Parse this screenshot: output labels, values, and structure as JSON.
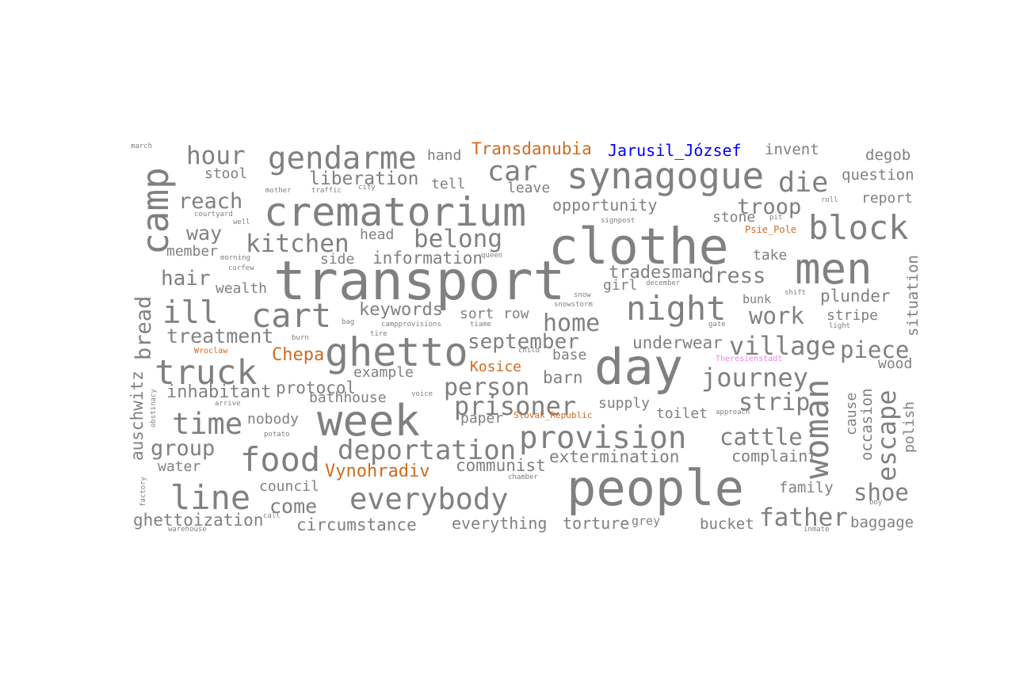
{
  "colors": {
    "default": "#808080",
    "orange": "#d2691e",
    "blue": "#0000ff",
    "pink": "#ee82ee"
  },
  "words": [
    {
      "text": "transport",
      "weight": 1.0,
      "color": "default"
    },
    {
      "text": "clothe",
      "weight": 0.96,
      "color": "default"
    },
    {
      "text": "day",
      "weight": 0.95,
      "color": "default"
    },
    {
      "text": "people",
      "weight": 0.95,
      "color": "default"
    },
    {
      "text": "men",
      "weight": 0.84,
      "color": "default"
    },
    {
      "text": "week",
      "weight": 0.84,
      "color": "default"
    },
    {
      "text": "crematorium",
      "weight": 0.78,
      "color": "default"
    },
    {
      "text": "ghetto",
      "weight": 0.78,
      "color": "default"
    },
    {
      "text": "synagogue",
      "weight": 0.7,
      "color": "default"
    },
    {
      "text": "camp",
      "weight": 0.7,
      "color": "default"
    },
    {
      "text": "truck",
      "weight": 0.66,
      "color": "default"
    },
    {
      "text": "woman",
      "weight": 0.64,
      "color": "default"
    },
    {
      "text": "block",
      "weight": 0.64,
      "color": "default"
    },
    {
      "text": "cart",
      "weight": 0.64,
      "color": "default"
    },
    {
      "text": "night",
      "weight": 0.64,
      "color": "default"
    },
    {
      "text": "food",
      "weight": 0.64,
      "color": "default"
    },
    {
      "text": "line",
      "weight": 0.64,
      "color": "default"
    },
    {
      "text": "provision",
      "weight": 0.6,
      "color": "default"
    },
    {
      "text": "gendarme",
      "weight": 0.6,
      "color": "default"
    },
    {
      "text": "ill",
      "weight": 0.6,
      "color": "default"
    },
    {
      "text": "time",
      "weight": 0.57,
      "color": "default"
    },
    {
      "text": "everybody",
      "weight": 0.57,
      "color": "default"
    },
    {
      "text": "die",
      "weight": 0.54,
      "color": "default"
    },
    {
      "text": "car",
      "weight": 0.54,
      "color": "default"
    },
    {
      "text": "deportation",
      "weight": 0.52,
      "color": "default"
    },
    {
      "text": "escape",
      "weight": 0.5,
      "color": "default"
    },
    {
      "text": "prisoner",
      "weight": 0.5,
      "color": "default"
    },
    {
      "text": "village",
      "weight": 0.5,
      "color": "default"
    },
    {
      "text": "journey",
      "weight": 0.5,
      "color": "default"
    },
    {
      "text": "kitchen",
      "weight": 0.48,
      "color": "default"
    },
    {
      "text": "belong",
      "weight": 0.48,
      "color": "default"
    },
    {
      "text": "hour",
      "weight": 0.48,
      "color": "default"
    },
    {
      "text": "father",
      "weight": 0.48,
      "color": "default"
    },
    {
      "text": "person",
      "weight": 0.46,
      "color": "default"
    },
    {
      "text": "home",
      "weight": 0.46,
      "color": "default"
    },
    {
      "text": "strip",
      "weight": 0.46,
      "color": "default"
    },
    {
      "text": "cattle",
      "weight": 0.45,
      "color": "default"
    },
    {
      "text": "shoe",
      "weight": 0.45,
      "color": "default"
    },
    {
      "text": "work",
      "weight": 0.45,
      "color": "default"
    },
    {
      "text": "piece",
      "weight": 0.45,
      "color": "default"
    },
    {
      "text": "reach",
      "weight": 0.42,
      "color": "default"
    },
    {
      "text": "dress",
      "weight": 0.42,
      "color": "default"
    },
    {
      "text": "troop",
      "weight": 0.42,
      "color": "default"
    },
    {
      "text": "group",
      "weight": 0.42,
      "color": "default"
    },
    {
      "text": "bread",
      "weight": 0.42,
      "color": "default"
    },
    {
      "text": "september",
      "weight": 0.4,
      "color": "default"
    },
    {
      "text": "hair",
      "weight": 0.4,
      "color": "default"
    },
    {
      "text": "way",
      "weight": 0.38,
      "color": "default"
    },
    {
      "text": "treatment",
      "weight": 0.38,
      "color": "default"
    },
    {
      "text": "come",
      "weight": 0.38,
      "color": "default"
    },
    {
      "text": "liberation",
      "weight": 0.36,
      "color": "default"
    },
    {
      "text": "inhabitant",
      "weight": 0.34,
      "color": "default"
    },
    {
      "text": "Vynohradiv",
      "weight": 0.34,
      "color": "orange"
    },
    {
      "text": "Chepa",
      "weight": 0.34,
      "color": "orange"
    },
    {
      "text": "tradesman",
      "weight": 0.34,
      "color": "default"
    },
    {
      "text": "keywords",
      "weight": 0.34,
      "color": "default"
    },
    {
      "text": "auschwitz",
      "weight": 0.32,
      "color": "default"
    },
    {
      "text": "extermination",
      "weight": 0.32,
      "color": "default"
    },
    {
      "text": "barn",
      "weight": 0.32,
      "color": "default"
    },
    {
      "text": "information",
      "weight": 0.32,
      "color": "default"
    },
    {
      "text": "protocol",
      "weight": 0.32,
      "color": "default"
    },
    {
      "text": "plunder",
      "weight": 0.32,
      "color": "default"
    },
    {
      "text": "underwear",
      "weight": 0.32,
      "color": "default"
    },
    {
      "text": "communist",
      "weight": 0.32,
      "color": "default"
    },
    {
      "text": "circumstance",
      "weight": 0.32,
      "color": "default"
    },
    {
      "text": "ghettoization",
      "weight": 0.32,
      "color": "default"
    },
    {
      "text": "Transdanubia",
      "weight": 0.32,
      "color": "orange"
    },
    {
      "text": "Jarusil_József",
      "weight": 0.32,
      "color": "blue"
    },
    {
      "text": "opportunity",
      "weight": 0.3,
      "color": "default"
    },
    {
      "text": "complaint",
      "weight": 0.3,
      "color": "default"
    },
    {
      "text": "everything",
      "weight": 0.3,
      "color": "default"
    },
    {
      "text": "torture",
      "weight": 0.3,
      "color": "default"
    },
    {
      "text": "baggage",
      "weight": 0.3,
      "color": "default"
    },
    {
      "text": "bucket",
      "weight": 0.3,
      "color": "default"
    },
    {
      "text": "family",
      "weight": 0.3,
      "color": "default"
    },
    {
      "text": "occasion",
      "weight": 0.3,
      "color": "default"
    },
    {
      "text": "situation",
      "weight": 0.3,
      "color": "default"
    },
    {
      "text": "question",
      "weight": 0.3,
      "color": "default"
    },
    {
      "text": "degob",
      "weight": 0.3,
      "color": "default"
    },
    {
      "text": "invent",
      "weight": 0.3,
      "color": "default"
    },
    {
      "text": "report",
      "weight": 0.28,
      "color": "default"
    },
    {
      "text": "Kosice",
      "weight": 0.28,
      "color": "orange"
    },
    {
      "text": "council",
      "weight": 0.28,
      "color": "default"
    },
    {
      "text": "water",
      "weight": 0.28,
      "color": "default"
    },
    {
      "text": "nobody",
      "weight": 0.28,
      "color": "default"
    },
    {
      "text": "wealth",
      "weight": 0.28,
      "color": "default"
    },
    {
      "text": "stool",
      "weight": 0.28,
      "color": "default"
    },
    {
      "text": "hand",
      "weight": 0.28,
      "color": "default"
    },
    {
      "text": "tell",
      "weight": 0.28,
      "color": "default"
    },
    {
      "text": "leave",
      "weight": 0.28,
      "color": "default"
    },
    {
      "text": "head",
      "weight": 0.28,
      "color": "default"
    },
    {
      "text": "side",
      "weight": 0.28,
      "color": "default"
    },
    {
      "text": "sort",
      "weight": 0.28,
      "color": "default"
    },
    {
      "text": "row",
      "weight": 0.28,
      "color": "default"
    },
    {
      "text": "example",
      "weight": 0.28,
      "color": "default"
    },
    {
      "text": "bathhouse",
      "weight": 0.28,
      "color": "default"
    },
    {
      "text": "paper",
      "weight": 0.28,
      "color": "default"
    },
    {
      "text": "supply",
      "weight": 0.28,
      "color": "default"
    },
    {
      "text": "toilet",
      "weight": 0.28,
      "color": "default"
    },
    {
      "text": "base",
      "weight": 0.28,
      "color": "default"
    },
    {
      "text": "girl",
      "weight": 0.28,
      "color": "default"
    },
    {
      "text": "stone",
      "weight": 0.28,
      "color": "default"
    },
    {
      "text": "take",
      "weight": 0.28,
      "color": "default"
    },
    {
      "text": "stripe",
      "weight": 0.28,
      "color": "default"
    },
    {
      "text": "wood",
      "weight": 0.28,
      "color": "default"
    },
    {
      "text": "polish",
      "weight": 0.28,
      "color": "default"
    },
    {
      "text": "cause",
      "weight": 0.28,
      "color": "default"
    },
    {
      "text": "member",
      "weight": 0.28,
      "color": "default"
    },
    {
      "text": "bunk",
      "weight": 0.24,
      "color": "default"
    },
    {
      "text": "grey",
      "weight": 0.24,
      "color": "default"
    },
    {
      "text": "Psie_Pole",
      "weight": 0.22,
      "color": "orange"
    },
    {
      "text": "Slovak_Republic",
      "weight": 0.22,
      "color": "orange"
    },
    {
      "text": "Wroclaw",
      "weight": 0.2,
      "color": "orange"
    },
    {
      "text": "Theresienstadt",
      "weight": 0.2,
      "color": "pink"
    },
    {
      "text": "march",
      "weight": 0.2,
      "color": "default"
    },
    {
      "text": "mother",
      "weight": 0.2,
      "color": "default"
    },
    {
      "text": "traffic",
      "weight": 0.2,
      "color": "default"
    },
    {
      "text": "courtyard",
      "weight": 0.2,
      "color": "default"
    },
    {
      "text": "morning",
      "weight": 0.2,
      "color": "default"
    },
    {
      "text": "curfew",
      "weight": 0.2,
      "color": "default"
    },
    {
      "text": "signpost",
      "weight": 0.2,
      "color": "default"
    },
    {
      "text": "december",
      "weight": 0.2,
      "color": "default"
    },
    {
      "text": "snowstorm",
      "weight": 0.2,
      "color": "default"
    },
    {
      "text": "snow",
      "weight": 0.2,
      "color": "default"
    },
    {
      "text": "shift",
      "weight": 0.2,
      "color": "default"
    },
    {
      "text": "light",
      "weight": 0.2,
      "color": "default"
    },
    {
      "text": "child",
      "weight": 0.2,
      "color": "default"
    },
    {
      "text": "tire",
      "weight": 0.2,
      "color": "default"
    },
    {
      "text": "bag",
      "weight": 0.2,
      "color": "default"
    },
    {
      "text": "burn",
      "weight": 0.2,
      "color": "default"
    },
    {
      "text": "campprovisions",
      "weight": 0.2,
      "color": "default"
    },
    {
      "text": "tiame",
      "weight": 0.2,
      "color": "default"
    },
    {
      "text": "voice",
      "weight": 0.2,
      "color": "default"
    },
    {
      "text": "arrive",
      "weight": 0.2,
      "color": "default"
    },
    {
      "text": "obstinacy",
      "weight": 0.2,
      "color": "default"
    },
    {
      "text": "potato",
      "weight": 0.2,
      "color": "default"
    },
    {
      "text": "factory",
      "weight": 0.2,
      "color": "default"
    },
    {
      "text": "call",
      "weight": 0.2,
      "color": "default"
    },
    {
      "text": "warehouse",
      "weight": 0.2,
      "color": "default"
    },
    {
      "text": "chamber",
      "weight": 0.2,
      "color": "default"
    },
    {
      "text": "approach",
      "weight": 0.2,
      "color": "default"
    },
    {
      "text": "boy",
      "weight": 0.2,
      "color": "default"
    },
    {
      "text": "inmate",
      "weight": 0.2,
      "color": "default"
    },
    {
      "text": "roll",
      "weight": 0.2,
      "color": "default"
    },
    {
      "text": "pit",
      "weight": 0.2,
      "color": "default"
    },
    {
      "text": "well",
      "weight": 0.2,
      "color": "default"
    },
    {
      "text": "city",
      "weight": 0.2,
      "color": "default"
    },
    {
      "text": "queen",
      "weight": 0.2,
      "color": "default"
    },
    {
      "text": "gate",
      "weight": 0.2,
      "color": "default"
    }
  ]
}
